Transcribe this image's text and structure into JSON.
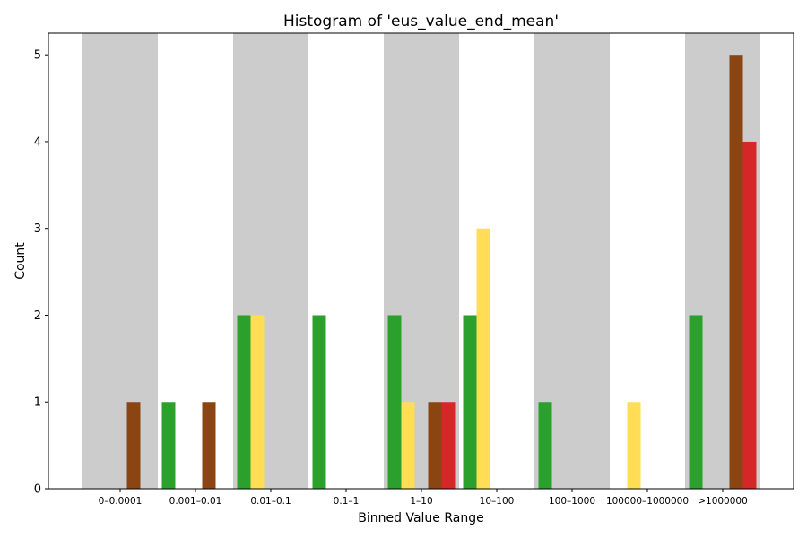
{
  "chart_data": {
    "type": "bar",
    "title": "Histogram of 'eus_value_end_mean'",
    "xlabel": "Binned Value Range",
    "ylabel": "Count",
    "ylim": [
      0,
      5.25
    ],
    "yticks": [
      0,
      1,
      2,
      3,
      4,
      5
    ],
    "grid": false,
    "legend": "none",
    "band_color": "#cccccc",
    "categories": [
      "0–0.0001",
      "0.001–0.01",
      "0.01–0.1",
      "0.1–1",
      "1–10",
      "10–100",
      "100–1000",
      "100000–1000000",
      ">1000000"
    ],
    "series": [
      {
        "color": "#2ca02c",
        "values": [
          0,
          1,
          2,
          2,
          2,
          2,
          1,
          0,
          2
        ]
      },
      {
        "color": "#ffdd55",
        "values": [
          0,
          0,
          2,
          0,
          1,
          3,
          0,
          1,
          0
        ]
      },
      {
        "color": "#d62728",
        "values": [
          0,
          0,
          0,
          0,
          1,
          0,
          0,
          0,
          4
        ]
      },
      {
        "color": "#8b4513",
        "values": [
          1,
          1,
          0,
          0,
          1,
          0,
          0,
          0,
          5
        ]
      }
    ]
  }
}
